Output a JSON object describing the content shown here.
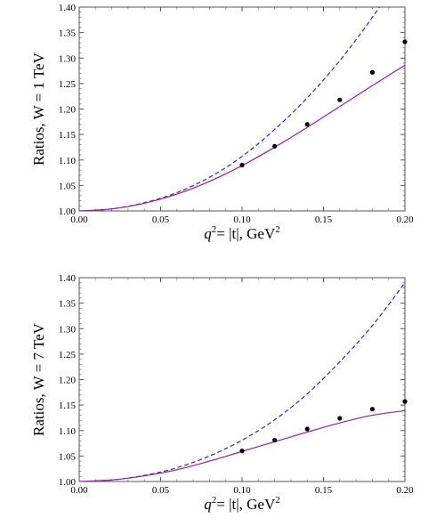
{
  "chart_data": [
    {
      "type": "line",
      "ylabel": "Ratios, W = 1 TeV",
      "xlabel_main": "q",
      "xlabel_sup": "2",
      "xlabel_rest": "= |t|, GeV",
      "xlabel_unit_sup": "2",
      "xlim": [
        0.0,
        0.2
      ],
      "ylim": [
        1.0,
        1.4
      ],
      "x_ticks": [
        "0.00",
        "0.05",
        "0.10",
        "0.15",
        "0.20"
      ],
      "y_ticks": [
        "1.00",
        "1.05",
        "1.10",
        "1.15",
        "1.20",
        "1.25",
        "1.30",
        "1.35",
        "1.40"
      ],
      "grid": false,
      "series": [
        {
          "style": "dashed",
          "color": "#2a2ad8",
          "x": [
            0.0,
            0.02,
            0.04,
            0.06,
            0.08,
            0.1,
            0.12,
            0.14,
            0.16,
            0.18,
            0.2
          ],
          "y": [
            1.0,
            1.004,
            1.016,
            1.036,
            1.066,
            1.107,
            1.16,
            1.222,
            1.295,
            1.38,
            1.475
          ]
        },
        {
          "style": "solid",
          "color": "#9b1f9b",
          "x": [
            0.0,
            0.02,
            0.04,
            0.06,
            0.08,
            0.1,
            0.12,
            0.14,
            0.16,
            0.18,
            0.2
          ],
          "y": [
            1.0,
            1.004,
            1.015,
            1.033,
            1.058,
            1.089,
            1.125,
            1.164,
            1.205,
            1.246,
            1.286
          ]
        },
        {
          "style": "points",
          "color": "#000000",
          "x": [
            0.1,
            0.12,
            0.14,
            0.16,
            0.18,
            0.2
          ],
          "y": [
            1.09,
            1.127,
            1.17,
            1.218,
            1.272,
            1.332
          ]
        }
      ]
    },
    {
      "type": "line",
      "ylabel": "Ratios, W = 7 TeV",
      "xlabel_main": "q",
      "xlabel_sup": "2",
      "xlabel_rest": "= |t|, GeV",
      "xlabel_unit_sup": "2",
      "xlim": [
        0.0,
        0.2
      ],
      "ylim": [
        1.0,
        1.4
      ],
      "x_ticks": [
        "0.00",
        "0.05",
        "0.10",
        "0.15",
        "0.20"
      ],
      "y_ticks": [
        "1.00",
        "1.05",
        "1.10",
        "1.15",
        "1.20",
        "1.25",
        "1.30",
        "1.35",
        "1.40"
      ],
      "grid": false,
      "series": [
        {
          "style": "dashed",
          "color": "#2a2ad8",
          "x": [
            0.0,
            0.02,
            0.04,
            0.06,
            0.08,
            0.1,
            0.12,
            0.14,
            0.16,
            0.18,
            0.2
          ],
          "y": [
            1.0,
            1.003,
            1.012,
            1.027,
            1.05,
            1.081,
            1.121,
            1.172,
            1.235,
            1.306,
            1.39
          ]
        },
        {
          "style": "solid",
          "color": "#9b1f9b",
          "x": [
            0.0,
            0.02,
            0.04,
            0.06,
            0.08,
            0.1,
            0.12,
            0.14,
            0.16,
            0.18,
            0.2
          ],
          "y": [
            1.0,
            1.003,
            1.011,
            1.023,
            1.04,
            1.059,
            1.078,
            1.097,
            1.115,
            1.13,
            1.139
          ]
        },
        {
          "style": "points",
          "color": "#000000",
          "x": [
            0.1,
            0.12,
            0.14,
            0.16,
            0.18,
            0.2
          ],
          "y": [
            1.06,
            1.081,
            1.103,
            1.124,
            1.142,
            1.157
          ]
        }
      ]
    }
  ]
}
